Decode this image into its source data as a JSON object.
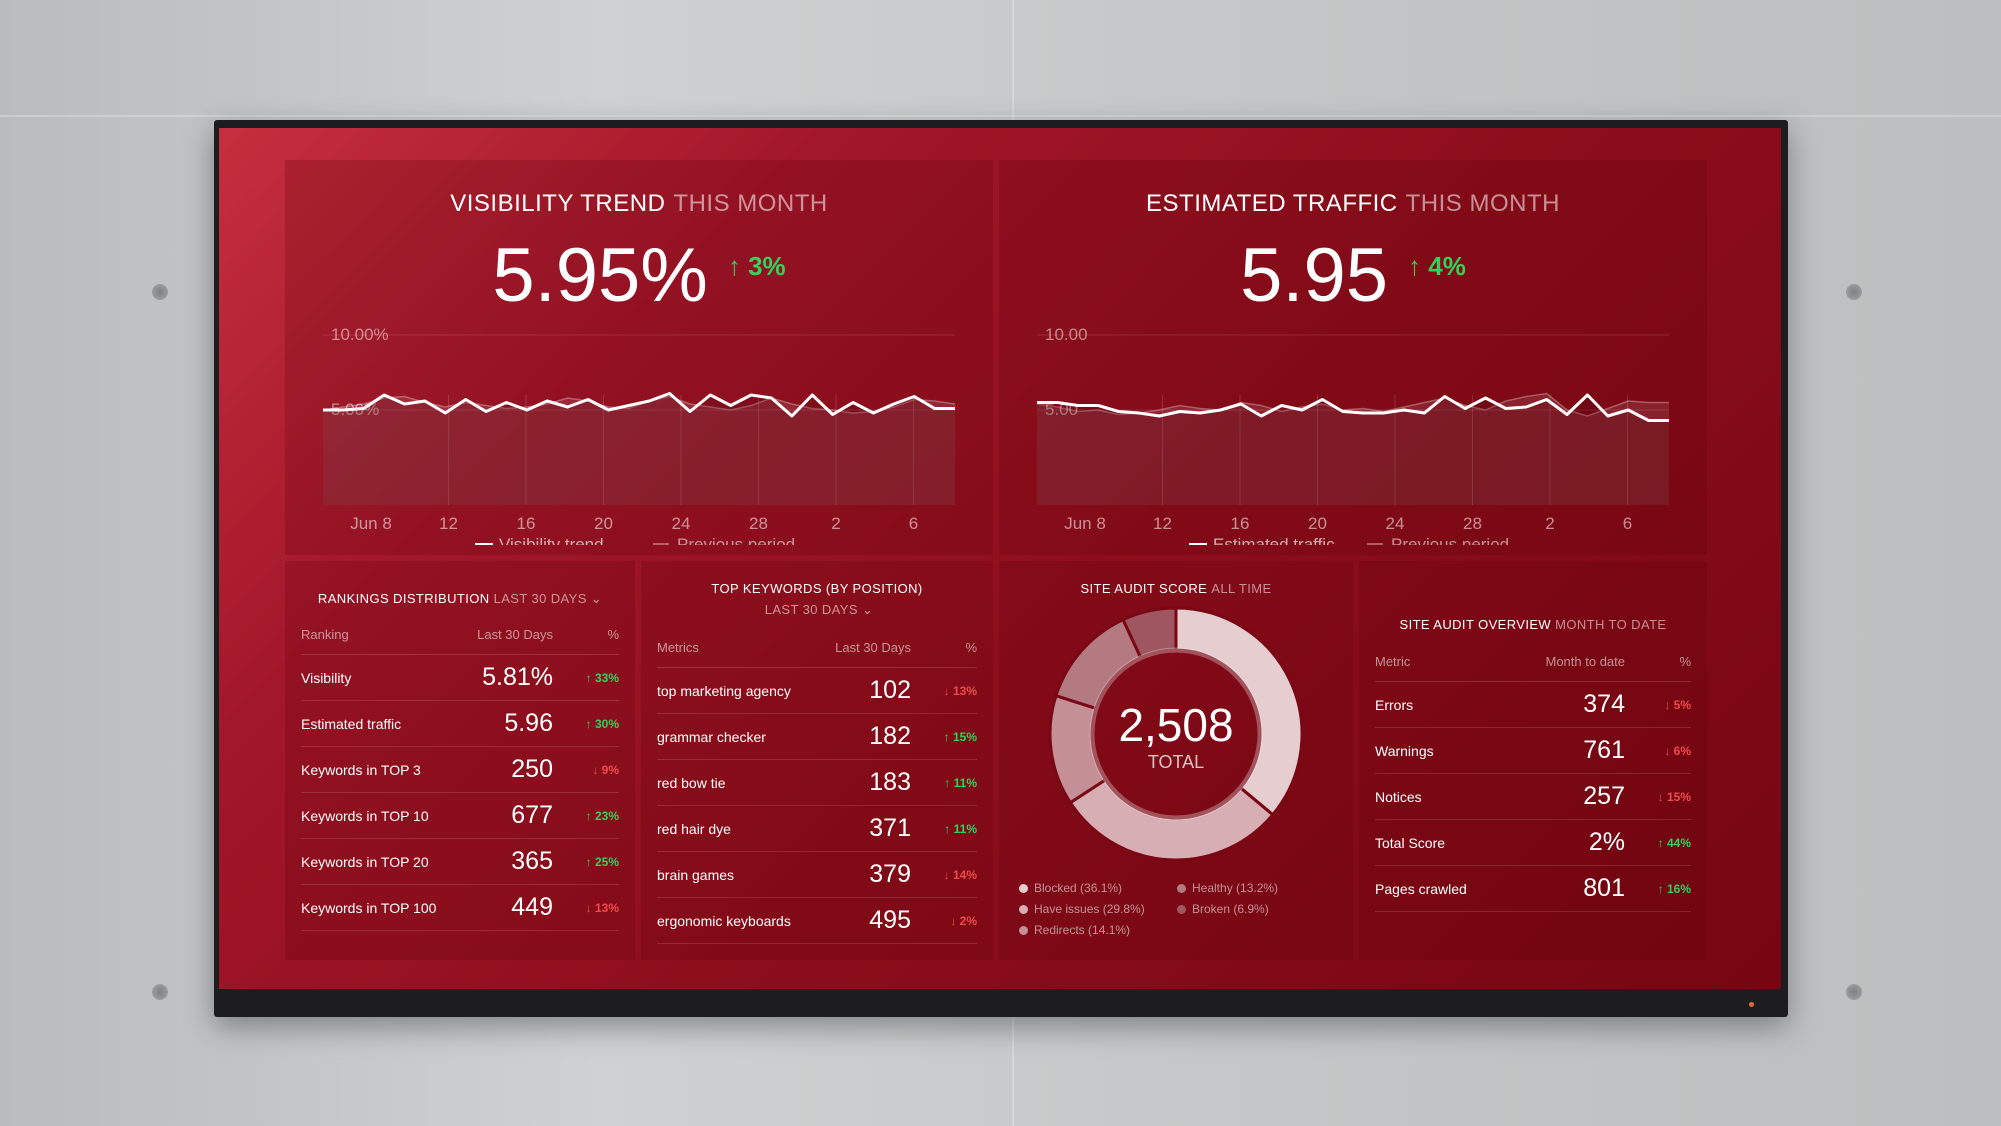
{
  "visibility": {
    "title": "VISIBILITY TREND",
    "period": "THIS MONTH",
    "value": "5.95%",
    "change": "3%",
    "change_dir": "up",
    "y_labels": [
      "10.00%",
      "5.00%"
    ],
    "x_labels": [
      "Jun 8",
      "12",
      "16",
      "20",
      "24",
      "28",
      "2",
      "6"
    ],
    "legend": [
      "Visibility trend",
      "Previous period"
    ]
  },
  "traffic": {
    "title": "ESTIMATED TRAFFIC",
    "period": "THIS MONTH",
    "value": "5.95",
    "change": "4%",
    "change_dir": "up",
    "y_labels": [
      "10.00",
      "5.00"
    ],
    "x_labels": [
      "Jun 8",
      "12",
      "16",
      "20",
      "24",
      "28",
      "2",
      "6"
    ],
    "legend": [
      "Estimated traffic",
      "Previous period"
    ]
  },
  "chart_data": [
    {
      "type": "line",
      "title": "Visibility trend",
      "ylim": [
        0,
        10
      ],
      "series": [
        {
          "name": "Visibility trend",
          "values": [
            5.0,
            5.0,
            5.1,
            6.0,
            5.4,
            5.6,
            4.8,
            5.7,
            4.9,
            5.5,
            5.0,
            5.6,
            5.2,
            5.7,
            5.0,
            5.3,
            5.6,
            6.1,
            4.9,
            6.0,
            5.3,
            6.0,
            5.8,
            4.6,
            6.0,
            4.7,
            5.5,
            4.8,
            5.4,
            5.9,
            5.1,
            5.1
          ]
        },
        {
          "name": "Previous period",
          "values": [
            5.0,
            5.2,
            5.4,
            5.8,
            5.9,
            5.5,
            5.2,
            5.5,
            5.3,
            5.1,
            5.2,
            5.4,
            5.8,
            5.6,
            5.2,
            5.1,
            5.6,
            5.9,
            5.4,
            5.2,
            5.0,
            5.3,
            5.8,
            5.4,
            5.1,
            5.0,
            4.8,
            4.9,
            5.2,
            5.7,
            5.6,
            5.4
          ]
        }
      ]
    },
    {
      "type": "line",
      "title": "Estimated traffic",
      "ylim": [
        0,
        10
      ],
      "series": [
        {
          "name": "Estimated traffic",
          "values": [
            5.5,
            5.5,
            5.3,
            5.3,
            4.9,
            4.8,
            4.6,
            4.9,
            4.8,
            5.0,
            5.4,
            4.6,
            5.3,
            5.0,
            5.7,
            4.9,
            4.8,
            4.8,
            5.0,
            4.8,
            5.9,
            5.1,
            5.8,
            5.1,
            5.2,
            5.7,
            4.7,
            6.0,
            4.6,
            5.0,
            4.3,
            4.3
          ]
        },
        {
          "name": "Previous period",
          "values": [
            5.4,
            5.2,
            4.9,
            5.0,
            4.7,
            4.8,
            5.0,
            5.3,
            5.1,
            5.0,
            5.5,
            5.3,
            4.9,
            5.2,
            5.4,
            5.0,
            5.1,
            4.9,
            5.2,
            5.5,
            5.8,
            5.3,
            5.0,
            5.6,
            5.9,
            6.1,
            5.0,
            4.6,
            5.1,
            5.6,
            5.5,
            5.5
          ]
        }
      ]
    },
    {
      "type": "pie",
      "title": "Site audit score",
      "total": "2,508",
      "total_label": "TOTAL",
      "categories": [
        "Blocked",
        "Have issues",
        "Redirects",
        "Healthy",
        "Broken"
      ],
      "values": [
        36.1,
        29.8,
        14.1,
        13.2,
        6.9
      ]
    }
  ],
  "rankings": {
    "title": "RANKINGS DISTRIBUTION",
    "period": "LAST 30 DAYS",
    "headers": [
      "Ranking",
      "Last 30 Days",
      "%"
    ],
    "rows": [
      {
        "label": "Visibility",
        "value": "5.81%",
        "change": "33%",
        "dir": "up"
      },
      {
        "label": "Estimated traffic",
        "value": "5.96",
        "change": "30%",
        "dir": "up"
      },
      {
        "label": "Keywords in TOP 3",
        "value": "250",
        "change": "9%",
        "dir": "down"
      },
      {
        "label": "Keywords in TOP 10",
        "value": "677",
        "change": "23%",
        "dir": "up"
      },
      {
        "label": "Keywords in TOP 20",
        "value": "365",
        "change": "25%",
        "dir": "up"
      },
      {
        "label": "Keywords in TOP 100",
        "value": "449",
        "change": "13%",
        "dir": "down"
      }
    ]
  },
  "keywords": {
    "title": "TOP KEYWORDS (BY POSITION)",
    "period": "LAST 30 DAYS",
    "headers": [
      "Metrics",
      "Last 30 Days",
      "%"
    ],
    "rows": [
      {
        "label": "top marketing agency",
        "value": "102",
        "change": "13%",
        "dir": "down"
      },
      {
        "label": "grammar checker",
        "value": "182",
        "change": "15%",
        "dir": "up"
      },
      {
        "label": "red bow tie",
        "value": "183",
        "change": "11%",
        "dir": "up"
      },
      {
        "label": "red hair dye",
        "value": "371",
        "change": "11%",
        "dir": "up"
      },
      {
        "label": "brain games",
        "value": "379",
        "change": "14%",
        "dir": "down"
      },
      {
        "label": "ergonomic keyboards",
        "value": "495",
        "change": "2%",
        "dir": "down"
      }
    ]
  },
  "audit_score": {
    "title": "SITE AUDIT SCORE",
    "period": "ALL TIME",
    "total": "2,508",
    "total_label": "TOTAL",
    "legend": [
      "Blocked (36.1%)",
      "Have issues (29.8%)",
      "Redirects (14.1%)",
      "Healthy (13.2%)",
      "Broken (6.9%)"
    ],
    "colors": [
      "#e6cdd0",
      "#d7aeb3",
      "#c58f96",
      "#b47a82",
      "#9f5660"
    ]
  },
  "audit_overview": {
    "title": "SITE AUDIT OVERVIEW",
    "period": "MONTH TO DATE",
    "headers": [
      "Metric",
      "Month to date",
      "%"
    ],
    "rows": [
      {
        "label": "Errors",
        "value": "374",
        "change": "5%",
        "dir": "down"
      },
      {
        "label": "Warnings",
        "value": "761",
        "change": "6%",
        "dir": "down"
      },
      {
        "label": "Notices",
        "value": "257",
        "change": "15%",
        "dir": "down"
      },
      {
        "label": "Total Score",
        "value": "2%",
        "change": "44%",
        "dir": "up"
      },
      {
        "label": "Pages crawled",
        "value": "801",
        "change": "16%",
        "dir": "up"
      }
    ]
  },
  "colors": {
    "up": "#2fd45a",
    "down": "#f04b4b"
  }
}
